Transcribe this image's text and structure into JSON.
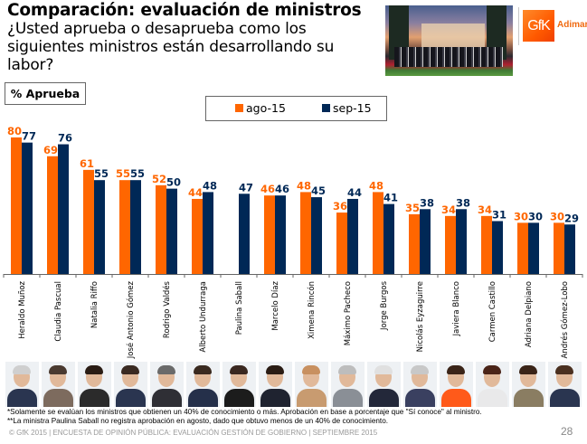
{
  "header": {
    "title": "Comparación: evaluación de ministros",
    "question": "¿Usted aprueba o desaprueba como los siguientes ministros están desarrollando su labor?",
    "metric_label": "% Aprueba",
    "logo_text": "GfK",
    "logo_subtext": "Adimar"
  },
  "colors": {
    "ago": "#ff6600",
    "sep": "#002856",
    "logo": "#ff5a00"
  },
  "chart_data": {
    "type": "bar",
    "title": "% Aprueba",
    "xlabel": "",
    "ylabel": "",
    "ylim": [
      0,
      80
    ],
    "grid": false,
    "legend_position": "top-center",
    "categories": [
      "Heraldo Muñoz",
      "Claudia Pascual",
      "Natalia Riffo",
      "José Antonio Gómez",
      "Rodrigo Valdés",
      "Alberto Undurraga",
      "Paulina Saball",
      "Marcelo Díaz",
      "Ximena Rincón",
      "Máximo Pacheco",
      "Jorge Burgos",
      "Nicolás Eyzaguirre",
      "Javiera Blanco",
      "Carmen Castillo",
      "Adriana Delpiano",
      "Andrés Gómez-Lobo"
    ],
    "series": [
      {
        "name": "ago-15",
        "values": [
          80,
          69,
          61,
          55,
          52,
          44,
          null,
          46,
          48,
          36,
          48,
          35,
          34,
          34,
          30,
          30
        ]
      },
      {
        "name": "sep-15",
        "values": [
          77,
          76,
          55,
          55,
          50,
          48,
          47,
          46,
          45,
          44,
          41,
          38,
          38,
          31,
          30,
          29
        ]
      }
    ]
  },
  "footnotes": [
    "*Solamente se evalúan los ministros que obtienen un 40% de conocimiento o más. Aprobación en base a porcentaje que \"Sí conoce\" al ministro.",
    "**La ministra Paulina Saball no registra aprobación en agosto, dado que obtuvo menos de un 40% de conocimiento."
  ],
  "footer": {
    "text": "© GfK 2015 | ENCUESTA DE OPINIÓN PÚBLICA: EVALUACIÓN GESTIÓN DE GOBIERNO | SEPTIEMBRE 2015",
    "page_number": "28"
  },
  "minister_photos": [
    "Heraldo Muñoz",
    "Claudia Pascual",
    "Natalia Riffo",
    "José Antonio Gómez",
    "Rodrigo Valdés",
    "Alberto Undurraga",
    "Paulina Saball",
    "Marcelo Díaz",
    "Ximena Rincón",
    "Máximo Pacheco",
    "Jorge Burgos",
    "Nicolás Eyzaguirre",
    "Javiera Blanco",
    "Carmen Castillo",
    "Adriana Delpiano",
    "Andrés Gómez-Lobo"
  ]
}
